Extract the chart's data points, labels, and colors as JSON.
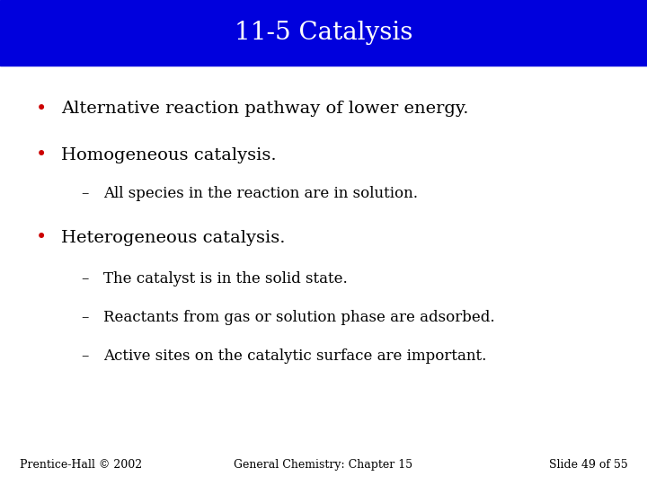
{
  "title": "11-5 Catalysis",
  "title_bg_color": "#0000DD",
  "title_text_color": "#FFFFFF",
  "title_fontsize": 20,
  "bg_color": "#FFFFFF",
  "bullet_color": "#CC0000",
  "bullet_fontsize": 14,
  "sub_fontsize": 12,
  "footer_fontsize": 9,
  "bullets": [
    "Alternative reaction pathway of lower energy.",
    "Homogeneous catalysis."
  ],
  "sub_bullet_1": "All species in the reaction are in solution.",
  "bullet3": "Heterogeneous catalysis.",
  "sub_bullets_3": [
    "The catalyst is in the solid state.",
    "Reactants from gas or solution phase are adsorbed.",
    "Active sites on the catalytic surface are important."
  ],
  "footer_left": "Prentice-Hall © 2002",
  "footer_center": "General Chemistry: Chapter 15",
  "footer_right": "Slide 49 of 55"
}
